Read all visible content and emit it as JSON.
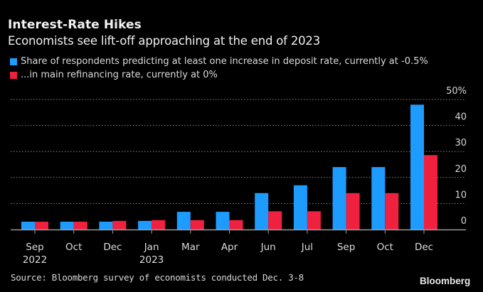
{
  "header": {
    "title": "Interest-Rate Hikes",
    "subtitle": "Economists see lift-off approaching at the end of 2023"
  },
  "legend": [
    {
      "label": "Share of respondents predicting at least one increase in deposit rate, currently at -0.5%",
      "color": "#1e9bff"
    },
    {
      "label": "...in main refinancing rate, currently at 0%",
      "color": "#f0213f"
    }
  ],
  "footer": {
    "source": "Source: Bloomberg survey of economists conducted Dec. 3-8",
    "brand": "Bloomberg"
  },
  "chart_data": {
    "type": "bar",
    "title": "Interest-Rate Hikes",
    "subtitle": "Economists see lift-off approaching at the end of 2023",
    "xlabel": "",
    "ylabel": "",
    "ylim": [
      0,
      50
    ],
    "yticks": [
      0,
      10,
      20,
      30,
      40,
      50
    ],
    "ytick_labels": [
      "0",
      "10",
      "20",
      "30",
      "40",
      "50%"
    ],
    "y_axis_side": "right",
    "grid": true,
    "legend_position": "top-left",
    "categories": [
      "Sep 2022",
      "Oct",
      "Dec",
      "Jan 2023",
      "Mar",
      "Apr",
      "Jun",
      "Jul",
      "Sep",
      "Oct",
      "Dec"
    ],
    "category_labels": [
      [
        "Sep",
        "2022"
      ],
      [
        "Oct"
      ],
      [
        "Dec"
      ],
      [
        "Jan",
        "2023"
      ],
      [
        "Mar"
      ],
      [
        "Apr"
      ],
      [
        "Jun"
      ],
      [
        "Jul"
      ],
      [
        "Sep"
      ],
      [
        "Oct"
      ],
      [
        "Dec"
      ]
    ],
    "series": [
      {
        "name": "Share of respondents predicting at least one increase in deposit rate, currently at -0.5%",
        "color": "#1e9bff",
        "values": [
          3.0,
          3.0,
          3.0,
          3.3,
          6.8,
          6.8,
          14,
          17,
          24,
          24,
          48
        ]
      },
      {
        "name": "...in main refinancing rate, currently at 0%",
        "color": "#f0213f",
        "values": [
          3.0,
          3.0,
          3.3,
          3.6,
          3.6,
          3.6,
          7,
          7,
          14,
          14,
          28.6
        ]
      }
    ],
    "source": "Source: Bloomberg survey of economists conducted Dec. 3-8"
  }
}
